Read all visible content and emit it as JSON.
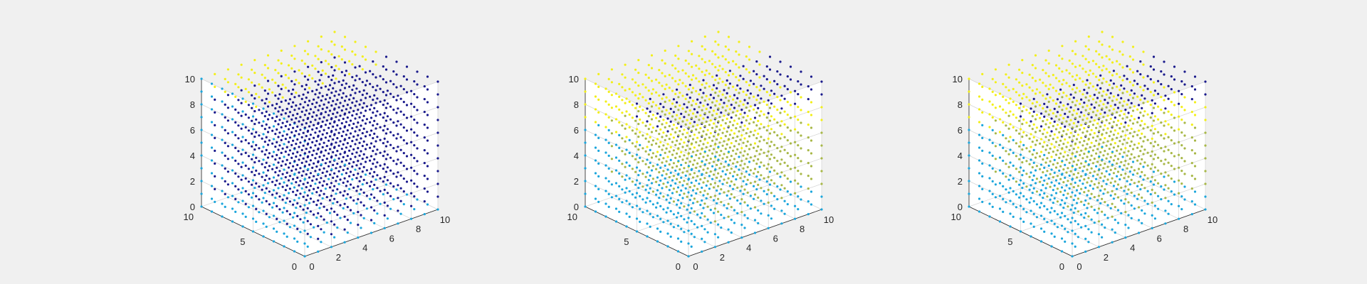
{
  "figure": {
    "background": "#f0f0f0",
    "axes_background": "#ffffff"
  },
  "colors": {
    "navy": "#1a1a8c",
    "cyan": "#1ca6dc",
    "yellow": "#f2ef1a",
    "olive": "#a8b848",
    "axis_line": "#262626",
    "grid": "#d4d4d4"
  },
  "chart_data": [
    {
      "type": "scatter3d",
      "title": "",
      "xlabel": "",
      "ylabel": "",
      "zlabel": "",
      "xlim": [
        0,
        10
      ],
      "ylim": [
        0,
        10
      ],
      "zlim": [
        0,
        10
      ],
      "xticks": [
        "0",
        "2",
        "4",
        "6",
        "8",
        "10"
      ],
      "yticks": [
        "0",
        "5",
        "10"
      ],
      "zticks": [
        "0",
        "2",
        "4",
        "6",
        "8",
        "10"
      ],
      "grid": true,
      "points": "all integer grid points (x, y, z) with x, y, z in 0..10",
      "color_rule": "z == 0 or x == 0 -> cyan; z >= 9 and y >= 6 -> yellow; otherwise navy"
    },
    {
      "type": "scatter3d",
      "title": "",
      "xlabel": "",
      "ylabel": "",
      "zlabel": "",
      "xlim": [
        0,
        10
      ],
      "ylim": [
        0,
        10
      ],
      "zlim": [
        0,
        10
      ],
      "xticks": [
        "0",
        "2",
        "4",
        "6",
        "8",
        "10"
      ],
      "yticks": [
        "0",
        "5",
        "10"
      ],
      "zticks": [
        "0",
        "2",
        "4",
        "6",
        "8",
        "10"
      ],
      "grid": true,
      "points": "all integer grid points (x, y, z) with x, y, z in 0..10",
      "color_rule": "z >= 9 and y <= 5 -> navy; z >= 7 -> yellow; z <= 1 or x <= 1 -> cyan; otherwise olive"
    },
    {
      "type": "scatter3d",
      "title": "",
      "xlabel": "",
      "ylabel": "",
      "zlabel": "",
      "xlim": [
        0,
        10
      ],
      "ylim": [
        0,
        10
      ],
      "zlim": [
        0,
        10
      ],
      "xticks": [
        "0",
        "2",
        "4",
        "6",
        "8",
        "10"
      ],
      "yticks": [
        "0",
        "5",
        "10"
      ],
      "zticks": [
        "0",
        "2",
        "4",
        "6",
        "8",
        "10"
      ],
      "grid": true,
      "points": "all integer grid points (x, y, z) with x, y, z in 0..10",
      "color_rule": "z >= 9 and y <= 5 -> navy; z >= 7 -> yellow; z <= 1 or x <= 1 -> cyan; otherwise olive"
    }
  ]
}
